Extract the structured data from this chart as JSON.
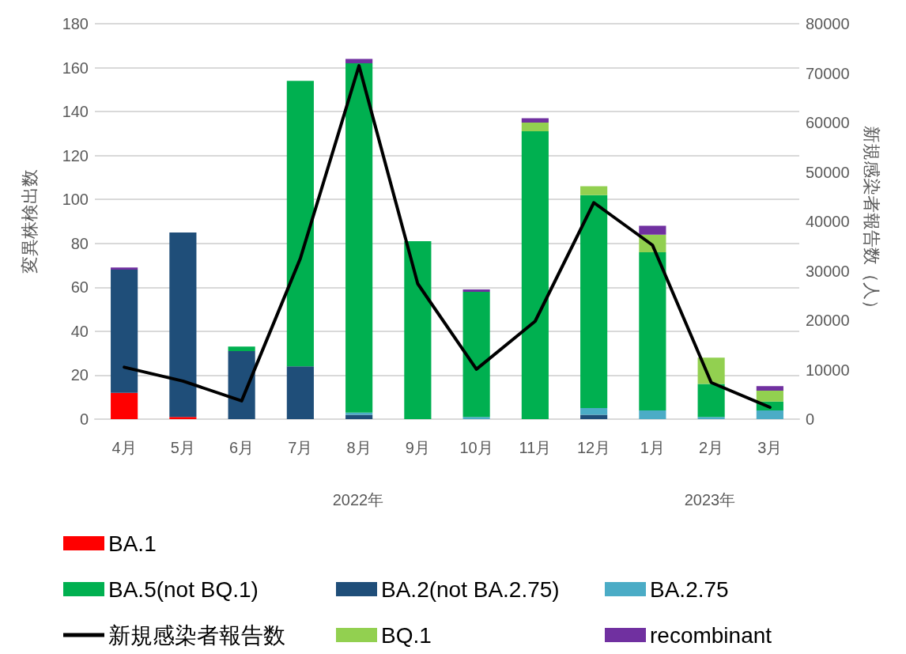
{
  "chart_data": {
    "type": "bar",
    "stacked": true,
    "categories": [
      "4月",
      "5月",
      "6月",
      "7月",
      "8月",
      "9月",
      "10月",
      "11月",
      "12月",
      "1月",
      "2月",
      "3月"
    ],
    "series": [
      {
        "name": "BA.1",
        "color": "#ff0000",
        "values": [
          12,
          1,
          0,
          0,
          0,
          0,
          0,
          0,
          0,
          0,
          0,
          0
        ]
      },
      {
        "name": "BA.2(not BA.2.75)",
        "color": "#1f4e79",
        "values": [
          56,
          84,
          31,
          24,
          2,
          0,
          0,
          0,
          2,
          0,
          0,
          0
        ]
      },
      {
        "name": "BA.2.75",
        "color": "#4bacc6",
        "values": [
          0,
          0,
          0,
          0,
          1,
          0,
          1,
          0,
          3,
          4,
          1,
          4
        ]
      },
      {
        "name": "BA.5(not BQ.1)",
        "color": "#00b050",
        "values": [
          0,
          0,
          2,
          130,
          159,
          81,
          57,
          131,
          97,
          72,
          15,
          4
        ]
      },
      {
        "name": "BQ.1",
        "color": "#92d050",
        "values": [
          0,
          0,
          0,
          0,
          0,
          0,
          0,
          4,
          4,
          8,
          12,
          5
        ]
      },
      {
        "name": "recombinant",
        "color": "#7030a0",
        "values": [
          1,
          0,
          0,
          0,
          2,
          0,
          1,
          2,
          0,
          4,
          0,
          2
        ]
      },
      {
        "name": "新規感染者報告数",
        "type": "line",
        "axis": "y2",
        "color": "#000000",
        "values": [
          10500,
          7700,
          3700,
          32500,
          71500,
          27400,
          10100,
          19800,
          43800,
          35200,
          7400,
          2400
        ]
      }
    ],
    "ylabel": "変異株検出数",
    "y2label": "新規感染者報告数（人）",
    "ylim": [
      0,
      180
    ],
    "yticks": [
      0,
      20,
      40,
      60,
      80,
      100,
      120,
      140,
      160,
      180
    ],
    "y2lim": [
      0,
      80000
    ],
    "y2ticks": [
      0,
      10000,
      20000,
      30000,
      40000,
      50000,
      60000,
      70000,
      80000
    ],
    "annotations": [
      "2022年",
      "2023年"
    ],
    "grid": "y",
    "legend": "bottom",
    "marker": "none",
    "line_style": "solid"
  }
}
